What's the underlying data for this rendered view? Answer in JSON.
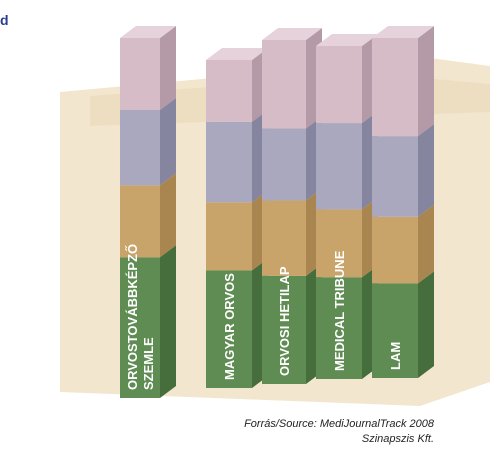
{
  "corner_label": "d",
  "source": {
    "line1": "Forrás/Source: MediJournalTrack 2008",
    "line2": "Szinapszis Kft."
  },
  "colors": {
    "segments": [
      "#5e8c52",
      "#c8a46b",
      "#a9a8bf",
      "#d6bcc7"
    ],
    "segment_tops": [
      "#7aa86d",
      "#dcbd88",
      "#c5c4d6",
      "#e6d2da"
    ],
    "segment_sides": [
      "#466d3c",
      "#a9854f",
      "#8685a0",
      "#b49aa6"
    ],
    "background_panel": "#f3e6cf",
    "background_panel_dark": "#ead7b6",
    "label_text": "#ffffff"
  },
  "chart_data": {
    "type": "bar",
    "stacked": true,
    "categories": [
      [
        "ORVOSTOVÁBBKÉPZŐ",
        "SZEMLE"
      ],
      [
        "MAGYAR ORVOS"
      ],
      [
        "ORVOSI HETILAP"
      ],
      [
        "MEDICAL TRIBUNE"
      ],
      [
        "LAM"
      ]
    ],
    "series": [
      {
        "values": [
          43,
          38,
          33,
          33,
          27
        ]
      },
      {
        "values": [
          22,
          22,
          23,
          22,
          19
        ]
      },
      {
        "values": [
          23,
          26,
          22,
          28,
          23
        ]
      },
      {
        "values": [
          22,
          20,
          27,
          25,
          28
        ]
      }
    ]
  }
}
